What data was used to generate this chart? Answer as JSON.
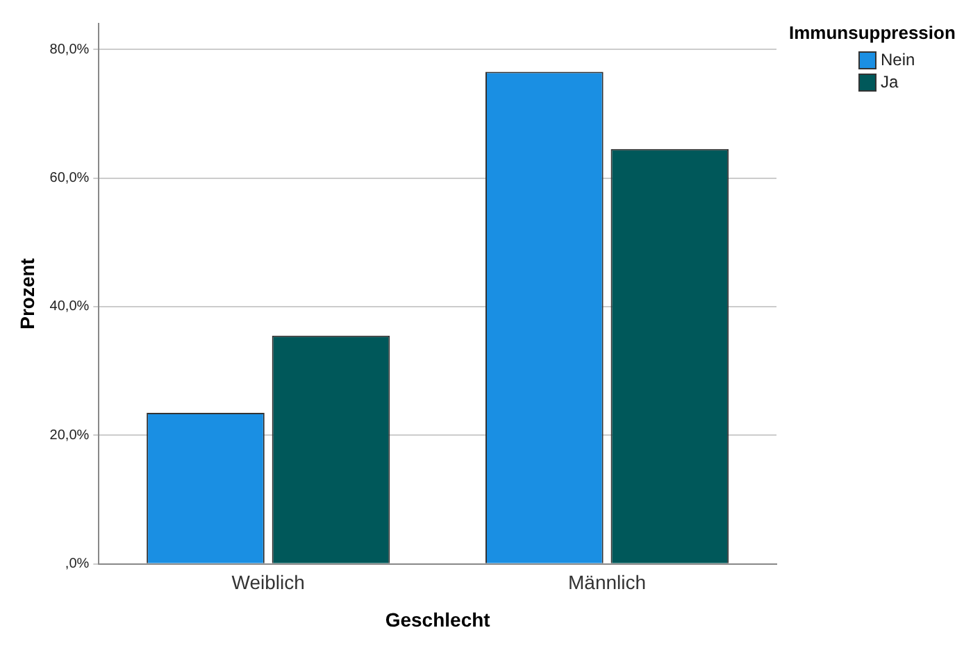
{
  "chart_data": {
    "type": "bar",
    "xlabel": "Geschlecht",
    "ylabel": "Prozent",
    "legend_title": "Immunsuppression",
    "categories": [
      "Weiblich",
      "Männlich"
    ],
    "series": [
      {
        "name": "Nein",
        "color": "#1a8fe3",
        "values": [
          23.5,
          76.5
        ]
      },
      {
        "name": "Ja",
        "color": "#00585a",
        "values": [
          35.5,
          64.5
        ]
      }
    ],
    "ylim": [
      0,
      84
    ],
    "yticks": [
      {
        "value": 0,
        "label": ",0%"
      },
      {
        "value": 20,
        "label": "20,0%"
      },
      {
        "value": 40,
        "label": "40,0%"
      },
      {
        "value": 60,
        "label": "60,0%"
      },
      {
        "value": 80,
        "label": "80,0%"
      }
    ],
    "grid": "y",
    "legend": "top right"
  }
}
